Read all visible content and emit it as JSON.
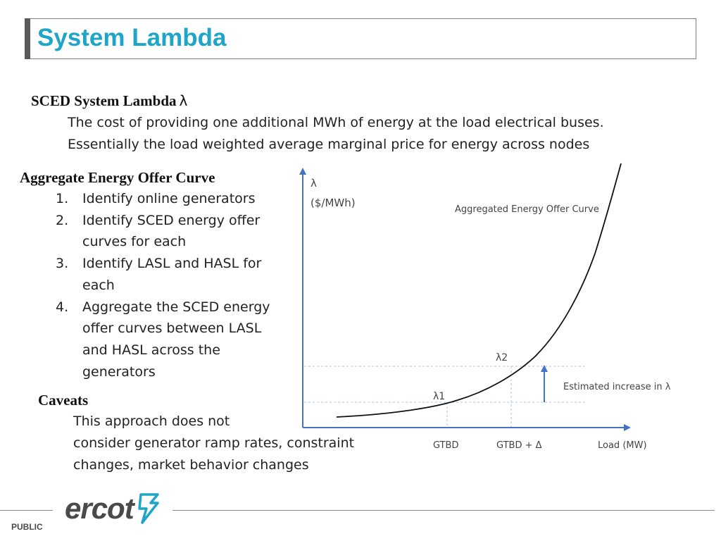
{
  "header": {
    "title": "System Lambda"
  },
  "sced": {
    "heading": "SCED System Lambda",
    "symbol": "λ",
    "lines": [
      "The cost of providing one additional MWh of energy at the load electrical buses.",
      "Essentially the load weighted average marginal price for energy across nodes"
    ]
  },
  "aggregate": {
    "heading": "Aggregate Energy Offer Curve",
    "steps": [
      {
        "num": "1.",
        "text": "Identify online generators"
      },
      {
        "num": "2.",
        "text": "Identify SCED energy offer curves for each"
      },
      {
        "num": "3.",
        "text": "Identify LASL and HASL for each"
      },
      {
        "num": "4.",
        "text": "Aggregate the SCED energy offer curves between LASL and HASL across the generators"
      }
    ]
  },
  "caveats": {
    "heading": "Caveats",
    "lines": [
      "This approach does not",
      "consider generator ramp rates, constraint",
      "changes, market behavior changes"
    ]
  },
  "diagram": {
    "y_label_1": "λ",
    "y_label_2": "($/MWh)",
    "curve_title": "Aggregated Energy Offer Curve",
    "lambda1": "λ1",
    "lambda2": "λ2",
    "increase_label": "Estimated increase in λ",
    "x_tick_1": "GTBD",
    "x_tick_2": "GTBD + Δ",
    "x_axis_label": "Load (MW)"
  },
  "footer": {
    "logo_text": "ercot",
    "public_label": "PUBLIC",
    "colors": {
      "title": "#1fa5c8",
      "logo_mark": "#1fa5c8",
      "logo_text": "#4a4a4a"
    }
  }
}
